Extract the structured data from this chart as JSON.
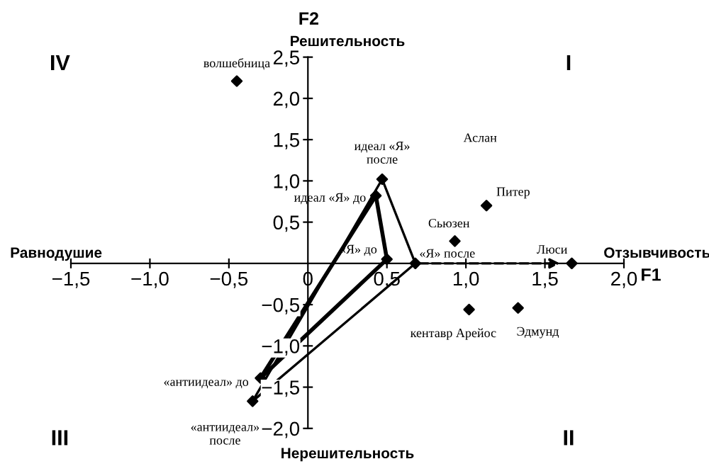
{
  "chart_data": {
    "type": "scatter",
    "xlabel": "F1",
    "ylabel": "F2",
    "xlim": [
      -1.5,
      2.0
    ],
    "ylim": [
      -2.0,
      2.5
    ],
    "xticks": [
      {
        "value": -1.5,
        "label": "−1,5"
      },
      {
        "value": -1.0,
        "label": "−1,0"
      },
      {
        "value": -0.5,
        "label": "−0,5"
      },
      0,
      {
        "value": 0.5,
        "label": "0,5"
      },
      {
        "value": 1.0,
        "label": "1,0"
      },
      {
        "value": 1.5,
        "label": "1,5"
      },
      {
        "value": 2.0,
        "label": "2,0"
      }
    ],
    "yticks": [
      {
        "value": -2.0,
        "label": "−2,0"
      },
      {
        "value": -1.5,
        "label": "−1,5"
      },
      {
        "value": -1.0,
        "label": "−1,0"
      },
      {
        "value": -0.5,
        "label": "−0,5"
      },
      {
        "value": 0,
        "label": null
      },
      {
        "value": 0.5,
        "label": "0,5"
      },
      {
        "value": 1.0,
        "label": "1,0"
      },
      {
        "value": 1.5,
        "label": "1,5"
      },
      {
        "value": 2.0,
        "label": "2,0"
      },
      {
        "value": 2.5,
        "label": "2,5"
      }
    ],
    "grid": false,
    "series": [
      {
        "type": "line",
        "color": "#000000",
        "line_style": "solid",
        "marker": "none",
        "x": [
          -0.3,
          0.43
        ],
        "values": [
          -1.39,
          0.82
        ]
      },
      {
        "type": "line",
        "color": "#000000",
        "line_style": "solid",
        "marker": "none",
        "x": [
          0.43,
          0.5
        ],
        "values": [
          0.82,
          0.05
        ]
      },
      {
        "type": "line",
        "color": "#000000",
        "line_style": "solid",
        "marker": "none",
        "x": [
          -0.3,
          0.5
        ],
        "values": [
          -1.39,
          0.05
        ]
      },
      {
        "type": "line",
        "color": "#000000",
        "line_style": "solid",
        "marker": "none",
        "x": [
          -0.35,
          0.47
        ],
        "values": [
          -1.67,
          1.02
        ]
      },
      {
        "type": "line",
        "color": "#000000",
        "line_style": "solid",
        "marker": "none",
        "x": [
          0.47,
          0.68
        ],
        "values": [
          1.02,
          0.0
        ]
      },
      {
        "type": "line",
        "color": "#000000",
        "line_style": "solid",
        "marker": "none",
        "x": [
          -0.35,
          0.68
        ],
        "values": [
          -1.67,
          0.0
        ]
      },
      {
        "color": "#000000",
        "marker": "diamond",
        "x": [
          -0.45,
          1.13,
          0.93,
          1.67,
          1.02,
          1.33,
          0.47,
          0.43,
          0.5,
          0.68,
          -0.3,
          -0.35
        ],
        "values": [
          2.21,
          0.7,
          0.27,
          0.0,
          -0.56,
          -0.54,
          1.02,
          0.82,
          0.05,
          0.0,
          -1.39,
          -1.67
        ]
      }
    ],
    "annotations": [
      {
        "text": "волшебница",
        "x": -0.45,
        "y": 2.21
      },
      {
        "text": "Питер",
        "x": 1.13,
        "y": 0.7
      },
      {
        "text": "Сьюзен",
        "x": 0.93,
        "y": 0.27
      },
      {
        "text": "Люси",
        "x": 1.67,
        "y": 0.0
      },
      {
        "text": "кентавр Арейос",
        "x": 1.02,
        "y": -0.56
      },
      {
        "text": "Эдмунд",
        "x": 1.33,
        "y": -0.54
      },
      {
        "text": "идеал «Я»\nпосле",
        "x": 0.47,
        "y": 1.02
      },
      {
        "text": "идеал «Я» до",
        "x": 0.43,
        "y": 0.82
      },
      {
        "text": "«Я» до",
        "x": 0.5,
        "y": 0.05
      },
      {
        "text": "«Я» после",
        "x": 0.68,
        "y": 0.0
      },
      {
        "text": "«антиидеал» до",
        "x": -0.3,
        "y": -1.39
      },
      {
        "text": "«антиидеал»\nпосле",
        "x": -0.35,
        "y": -1.67
      },
      "Аслан",
      "Решительность",
      "Нерешительность",
      "Равнодушие",
      "Отзывчивость",
      "I",
      "II",
      "III",
      "IV"
    ]
  }
}
